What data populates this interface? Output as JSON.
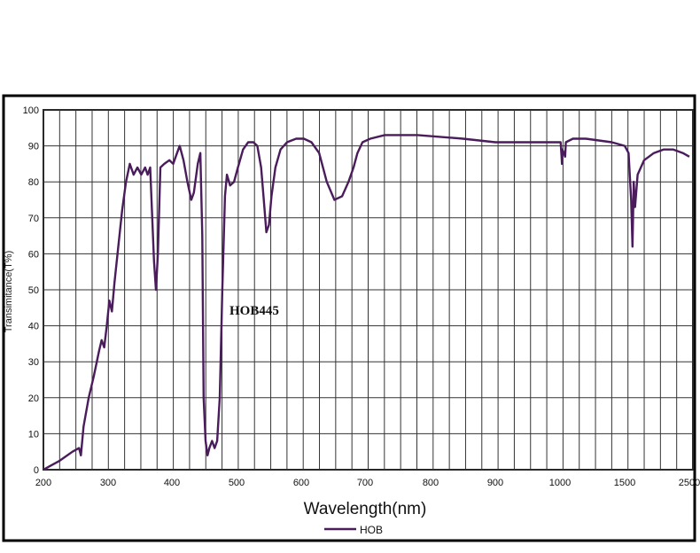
{
  "chart_data": {
    "type": "line",
    "title": "",
    "xlabel": "Wavelength(nm)",
    "ylabel": "Transimitance(T%)",
    "ylim": [
      0,
      100
    ],
    "y_ticks": [
      "0",
      "10",
      "20",
      "30",
      "40",
      "50",
      "60",
      "70",
      "80",
      "90",
      "100"
    ],
    "x_tick_labels": [
      "200",
      "300",
      "400",
      "500",
      "600",
      "700",
      "800",
      "900",
      "1000",
      "1500",
      "2500"
    ],
    "x_scale": "piecewise (200–1000 nm linear at 100 nm per division, then 1000–1500 and 1500–2500 nm compressed)",
    "grid": true,
    "annotation": "HOB445",
    "legend": {
      "position": "bottom-center",
      "label": "HOB"
    },
    "series": [
      {
        "name": "HOB",
        "color": "#4a1c5c",
        "points": [
          [
            200,
            0
          ],
          [
            210,
            1
          ],
          [
            225,
            2.5
          ],
          [
            245,
            5
          ],
          [
            255,
            6
          ],
          [
            258,
            4
          ],
          [
            262,
            12
          ],
          [
            270,
            20
          ],
          [
            278,
            26
          ],
          [
            286,
            33
          ],
          [
            290,
            36
          ],
          [
            294,
            34
          ],
          [
            298,
            40
          ],
          [
            302,
            47
          ],
          [
            306,
            44
          ],
          [
            310,
            52
          ],
          [
            316,
            62
          ],
          [
            322,
            72
          ],
          [
            328,
            80
          ],
          [
            334,
            85
          ],
          [
            340,
            82
          ],
          [
            346,
            84
          ],
          [
            352,
            82
          ],
          [
            358,
            84
          ],
          [
            362,
            82
          ],
          [
            366,
            84
          ],
          [
            372,
            58
          ],
          [
            375,
            50
          ],
          [
            378,
            60
          ],
          [
            382,
            84
          ],
          [
            388,
            85
          ],
          [
            396,
            86
          ],
          [
            402,
            85
          ],
          [
            408,
            88
          ],
          [
            412,
            90
          ],
          [
            418,
            86
          ],
          [
            424,
            80
          ],
          [
            430,
            75
          ],
          [
            434,
            77
          ],
          [
            440,
            85
          ],
          [
            444,
            88
          ],
          [
            447,
            65
          ],
          [
            449,
            20
          ],
          [
            452,
            8
          ],
          [
            455,
            4
          ],
          [
            458,
            6
          ],
          [
            462,
            8
          ],
          [
            466,
            6
          ],
          [
            470,
            8
          ],
          [
            474,
            20
          ],
          [
            478,
            50
          ],
          [
            482,
            76
          ],
          [
            485,
            82
          ],
          [
            490,
            79
          ],
          [
            496,
            80
          ],
          [
            502,
            84
          ],
          [
            510,
            89
          ],
          [
            518,
            91
          ],
          [
            526,
            91
          ],
          [
            532,
            90
          ],
          [
            538,
            84
          ],
          [
            542,
            75
          ],
          [
            546,
            66
          ],
          [
            550,
            68
          ],
          [
            554,
            76
          ],
          [
            560,
            84
          ],
          [
            568,
            89
          ],
          [
            578,
            91
          ],
          [
            592,
            92
          ],
          [
            604,
            92
          ],
          [
            616,
            91
          ],
          [
            628,
            88
          ],
          [
            640,
            80
          ],
          [
            652,
            75
          ],
          [
            664,
            76
          ],
          [
            674,
            80
          ],
          [
            682,
            84
          ],
          [
            688,
            88
          ],
          [
            696,
            91
          ],
          [
            708,
            92
          ],
          [
            730,
            93
          ],
          [
            780,
            93
          ],
          [
            850,
            92
          ],
          [
            900,
            91
          ],
          [
            950,
            91
          ],
          [
            1005,
            91
          ],
          [
            1012,
            87
          ],
          [
            1015,
            85
          ],
          [
            1018,
            89
          ],
          [
            1030,
            88
          ],
          [
            1040,
            87
          ],
          [
            1045,
            91
          ],
          [
            1100,
            92
          ],
          [
            1200,
            92
          ],
          [
            1400,
            91
          ],
          [
            1500,
            90
          ],
          [
            1560,
            88
          ],
          [
            1600,
            75
          ],
          [
            1620,
            62
          ],
          [
            1640,
            80
          ],
          [
            1660,
            73
          ],
          [
            1700,
            82
          ],
          [
            1800,
            86
          ],
          [
            1950,
            88
          ],
          [
            2100,
            89
          ],
          [
            2250,
            89
          ],
          [
            2400,
            88
          ],
          [
            2500,
            87
          ]
        ]
      }
    ]
  }
}
